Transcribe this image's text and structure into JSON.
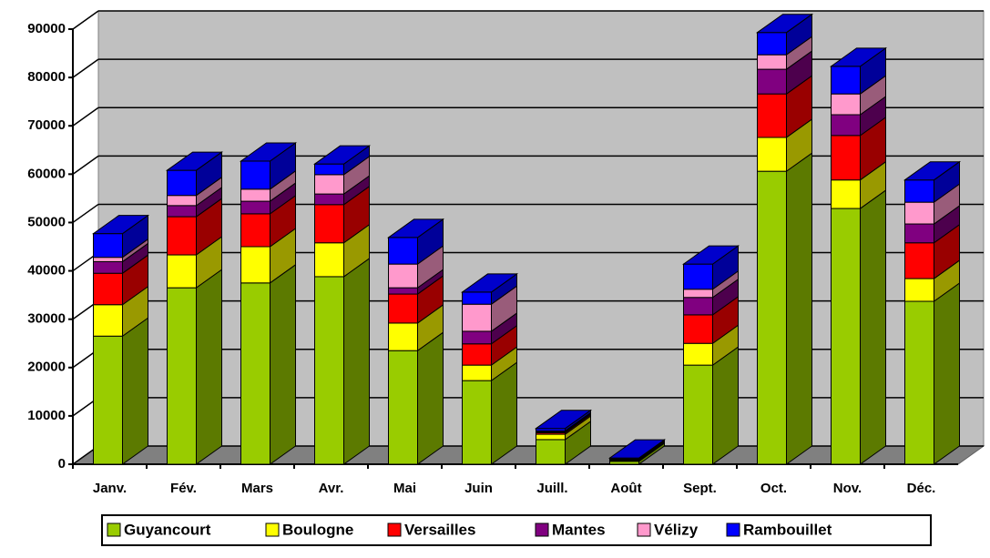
{
  "chart_data": {
    "type": "bar3d_stacked",
    "categories": [
      "Janv.",
      "Fév.",
      "Mars",
      "Avr.",
      "Mai",
      "Juin",
      "Juill.",
      "Août",
      "Sept.",
      "Oct.",
      "Nov.",
      "Déc."
    ],
    "series": [
      {
        "name": "Guyancourt",
        "color": "#99cc00",
        "values": [
          26500,
          36500,
          37500,
          38800,
          23500,
          17300,
          5100,
          600,
          20500,
          60600,
          52900,
          33700
        ]
      },
      {
        "name": "Boulogne",
        "color": "#ffff00",
        "values": [
          6500,
          6800,
          7500,
          7000,
          5700,
          3200,
          1100,
          200,
          4500,
          7000,
          5900,
          4700
        ]
      },
      {
        "name": "Versailles",
        "color": "#ff0000",
        "values": [
          6500,
          7900,
          6800,
          7900,
          6000,
          4400,
          300,
          100,
          5900,
          9000,
          9200,
          7400
        ]
      },
      {
        "name": "Mantes",
        "color": "#800080",
        "values": [
          2400,
          2300,
          2600,
          2200,
          1300,
          2600,
          200,
          100,
          3600,
          5100,
          4300,
          3900
        ]
      },
      {
        "name": "Vélizy",
        "color": "#ff99cc",
        "values": [
          900,
          2100,
          2500,
          4000,
          4900,
          5600,
          200,
          100,
          1700,
          3000,
          4300,
          4500
        ]
      },
      {
        "name": "Rambouillet",
        "color": "#0000ff",
        "values": [
          4900,
          5200,
          5800,
          2200,
          5500,
          2500,
          500,
          200,
          5200,
          4600,
          5700,
          4600
        ]
      }
    ],
    "ylim": [
      0,
      90000
    ],
    "yticks": [
      0,
      10000,
      20000,
      30000,
      40000,
      50000,
      60000,
      70000,
      80000,
      90000
    ],
    "grid": true,
    "legend": "bottom"
  }
}
